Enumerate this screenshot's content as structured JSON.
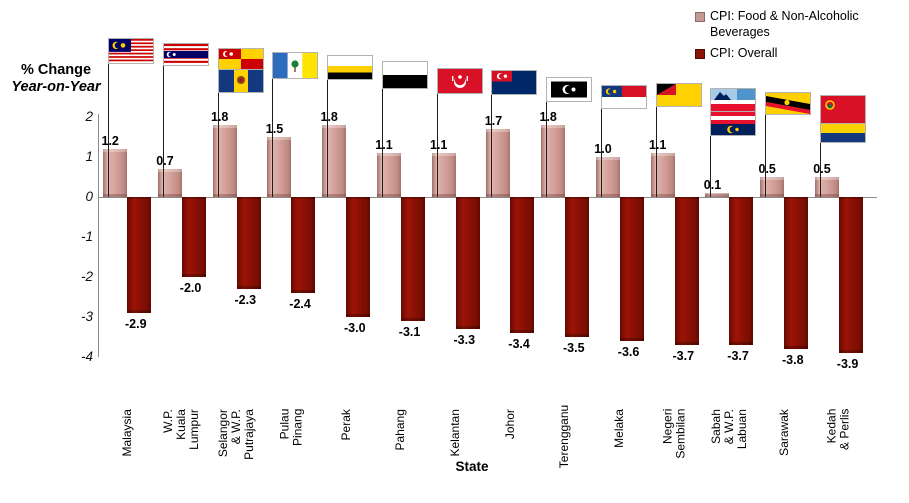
{
  "chart_data": {
    "type": "bar",
    "title": "",
    "xlabel": "State",
    "ylabel_line1": "% Change",
    "ylabel_line2": "Year-on-Year",
    "ylim": [
      -4,
      2
    ],
    "yticks": [
      2,
      1,
      0,
      -1,
      -2,
      -3,
      -4
    ],
    "grid": false,
    "legend_position": "top-right",
    "categories": [
      {
        "label_lines": [
          "Malaysia"
        ],
        "flags": [
          "malaysia"
        ]
      },
      {
        "label_lines": [
          "W.P.",
          "Kuala Lumpur"
        ],
        "flags": [
          "kuala-lumpur"
        ]
      },
      {
        "label_lines": [
          "Selangor",
          "& W.P. Putrajaya"
        ],
        "flags": [
          "selangor",
          "putrajaya"
        ]
      },
      {
        "label_lines": [
          "Pulau",
          "Pinang"
        ],
        "flags": [
          "pulau-pinang"
        ]
      },
      {
        "label_lines": [
          "Perak"
        ],
        "flags": [
          "perak"
        ]
      },
      {
        "label_lines": [
          "Pahang"
        ],
        "flags": [
          "pahang"
        ]
      },
      {
        "label_lines": [
          "Kelantan"
        ],
        "flags": [
          "kelantan"
        ]
      },
      {
        "label_lines": [
          "Johor"
        ],
        "flags": [
          "johor"
        ]
      },
      {
        "label_lines": [
          "Terengganu"
        ],
        "flags": [
          "terengganu"
        ]
      },
      {
        "label_lines": [
          "Melaka"
        ],
        "flags": [
          "melaka"
        ]
      },
      {
        "label_lines": [
          "Negeri",
          "Sembilan"
        ],
        "flags": [
          "negeri-sembilan"
        ]
      },
      {
        "label_lines": [
          "Sabah",
          "& W.P. Labuan"
        ],
        "flags": [
          "sabah",
          "labuan"
        ]
      },
      {
        "label_lines": [
          "Sarawak"
        ],
        "flags": [
          "sarawak"
        ]
      },
      {
        "label_lines": [
          "Kedah",
          "& Perlis"
        ],
        "flags": [
          "kedah",
          "perlis"
        ]
      }
    ],
    "series": [
      {
        "name": "CPI: Food & Non-Alcoholic Beverages",
        "color": "#cf9a93",
        "values": [
          1.2,
          0.7,
          1.8,
          1.5,
          1.8,
          1.1,
          1.1,
          1.7,
          1.8,
          1.0,
          1.1,
          0.1,
          0.5,
          0.5
        ]
      },
      {
        "name": "CPI: Overall",
        "color": "#8b1004",
        "values": [
          -2.9,
          -2.0,
          -2.3,
          -2.4,
          -3.0,
          -3.1,
          -3.3,
          -3.4,
          -3.5,
          -3.6,
          -3.7,
          -3.7,
          -3.8,
          -3.9
        ]
      }
    ]
  },
  "legend": {
    "items": [
      {
        "lines": [
          "CPI: Food & Non-Alcoholic",
          "Beverages"
        ],
        "swatch": "#c39a94"
      },
      {
        "lines": [
          "CPI: Overall"
        ],
        "swatch": "#8b1505"
      }
    ]
  }
}
